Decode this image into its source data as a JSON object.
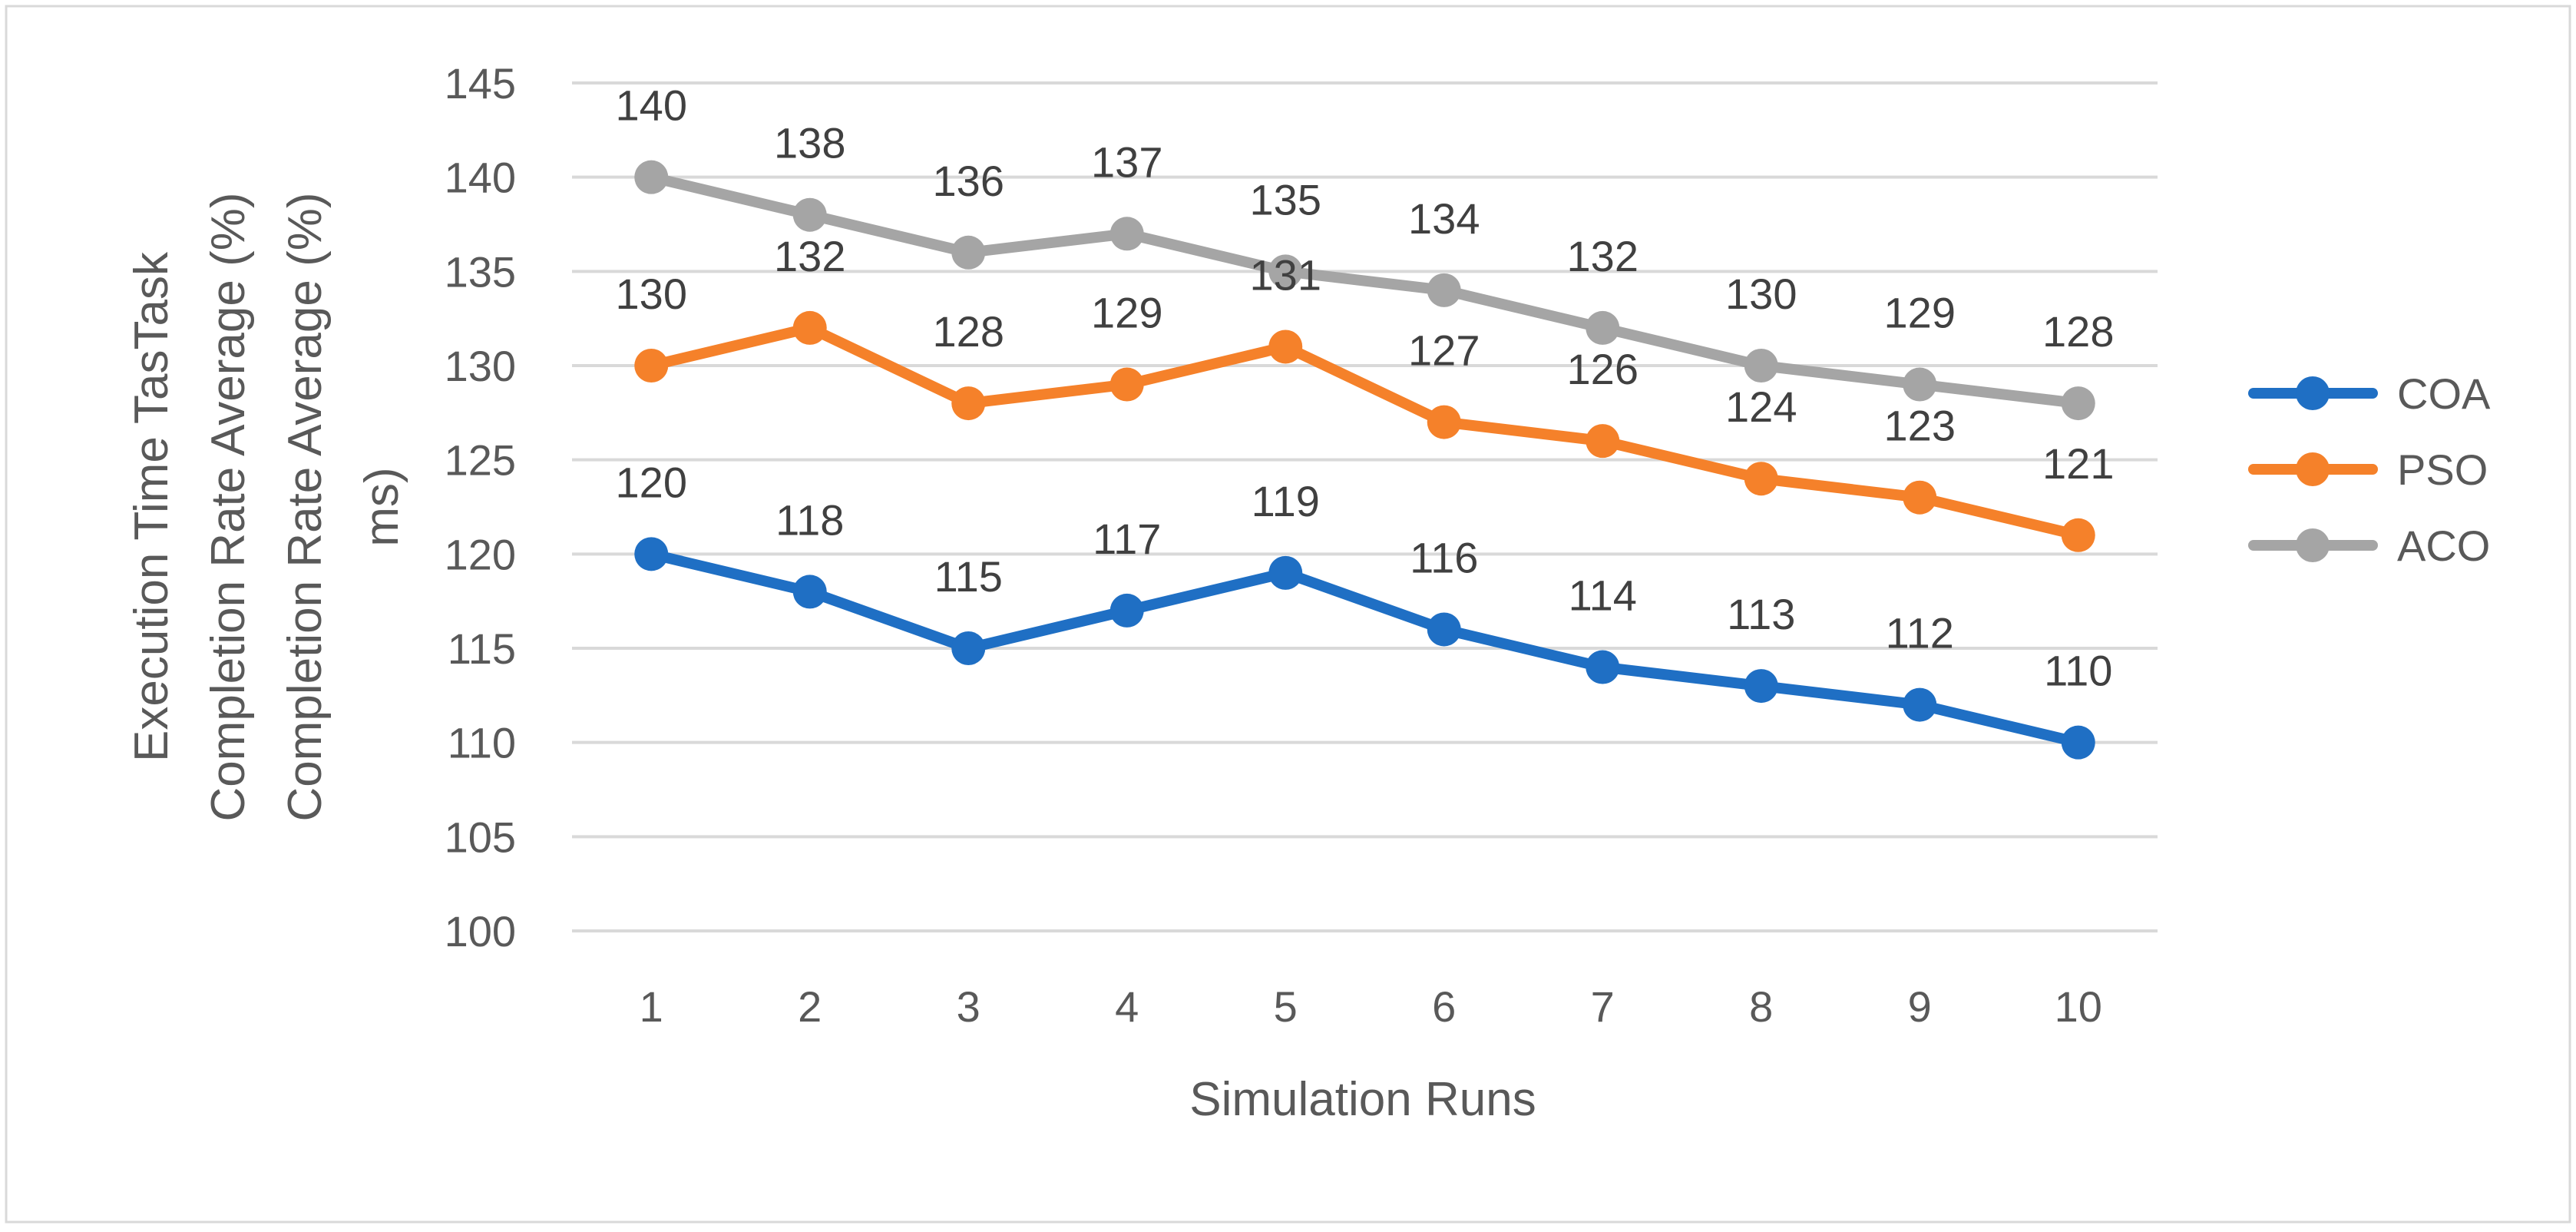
{
  "chart_data": {
    "type": "line",
    "title": "",
    "xlabel": "Simulation Runs",
    "ylabel_lines": [
      "Execution Time TasTask",
      "Completion Rate Average (%)",
      "Completion Rate Average (%)",
      "ms)"
    ],
    "categories": [
      "1",
      "2",
      "3",
      "4",
      "5",
      "6",
      "7",
      "8",
      "9",
      "10"
    ],
    "ylim": [
      100,
      145
    ],
    "yticks": [
      100,
      105,
      110,
      115,
      120,
      125,
      130,
      135,
      140,
      145
    ],
    "ytick_labels": [
      "100",
      "105",
      "110",
      "115",
      "120",
      "125",
      "130",
      "135",
      "140",
      "145"
    ],
    "grid": true,
    "legend_position": "right",
    "data_labels": true,
    "series": [
      {
        "name": "COA",
        "color": "#1f6fc4",
        "values": [
          120,
          118,
          115,
          117,
          119,
          116,
          114,
          113,
          112,
          110
        ]
      },
      {
        "name": "PSO",
        "color": "#f5812a",
        "values": [
          130,
          132,
          128,
          129,
          131,
          127,
          126,
          124,
          123,
          121
        ]
      },
      {
        "name": "ACO",
        "color": "#a5a5a5",
        "values": [
          140,
          138,
          136,
          137,
          135,
          134,
          132,
          130,
          129,
          128
        ]
      }
    ]
  }
}
